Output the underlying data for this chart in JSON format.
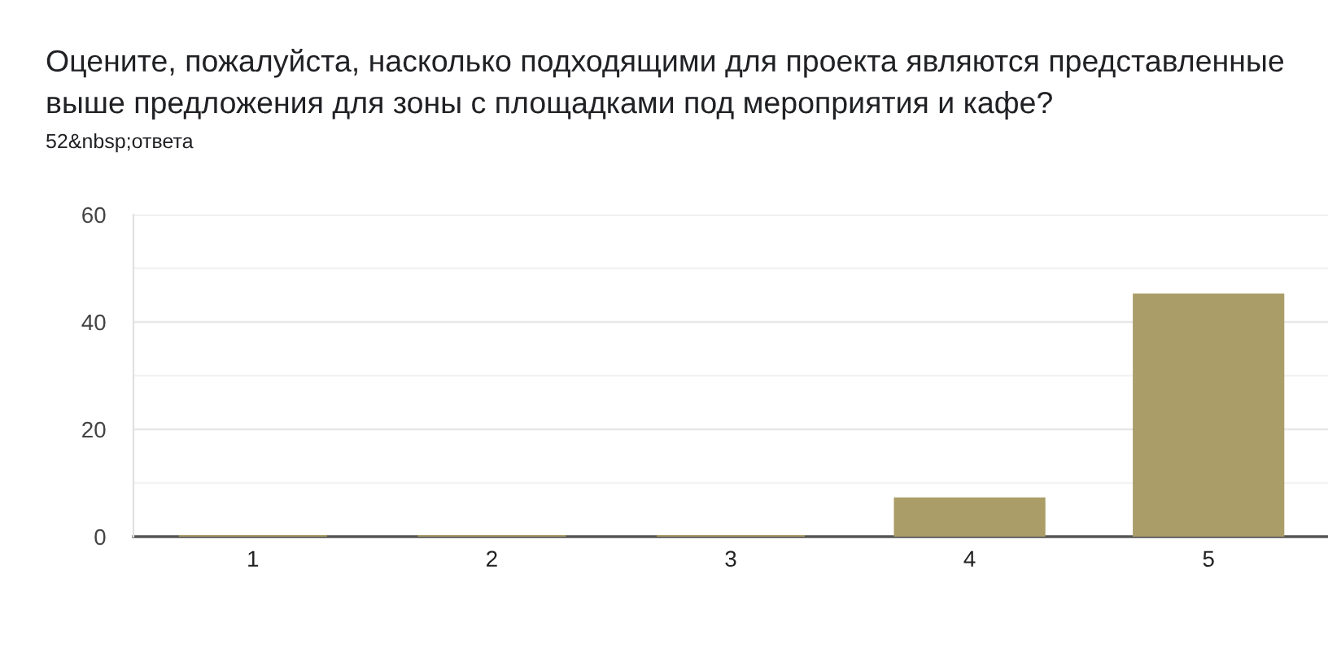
{
  "chart_data": {
    "type": "bar",
    "title": "Оцените, пожалуйста, насколько подходящими для проекта являются представленные выше предложения для зоны с площадками под мероприятия и кафе?",
    "subtitle": "52&nbsp;ответа",
    "categories": [
      "1",
      "2",
      "3",
      "4",
      "5"
    ],
    "values": [
      0,
      0,
      0,
      7,
      45
    ],
    "color": "#aa9d68",
    "ylim": [
      0,
      60
    ],
    "yticks": [
      0,
      {
        "value": 10,
        "label": null
      },
      20,
      {
        "value": 30,
        "label": null
      },
      40,
      {
        "value": 50,
        "label": null
      },
      60
    ],
    "grid": "y"
  }
}
